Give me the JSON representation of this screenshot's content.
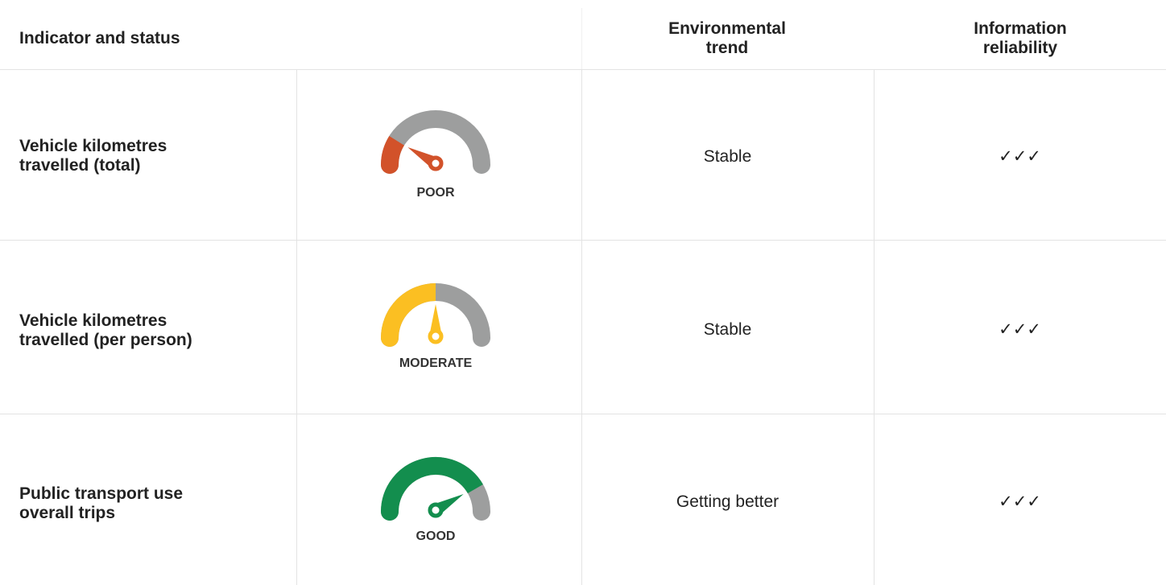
{
  "header": {
    "columns": [
      "Indicator and status",
      "Environmental trend",
      "Information reliability"
    ]
  },
  "rows": [
    {
      "indicator": "Vehicle kilometres travelled (total)",
      "status": "POOR",
      "trend": "Stable",
      "reliability": "✓✓✓"
    },
    {
      "indicator": "Vehicle kilometres travelled (per person)",
      "status": "MODERATE",
      "trend": "Stable",
      "reliability": "✓✓✓"
    },
    {
      "indicator": "Public transport use overall trips",
      "status": "GOOD",
      "trend": "Getting better",
      "reliability": "✓✓✓"
    }
  ]
}
